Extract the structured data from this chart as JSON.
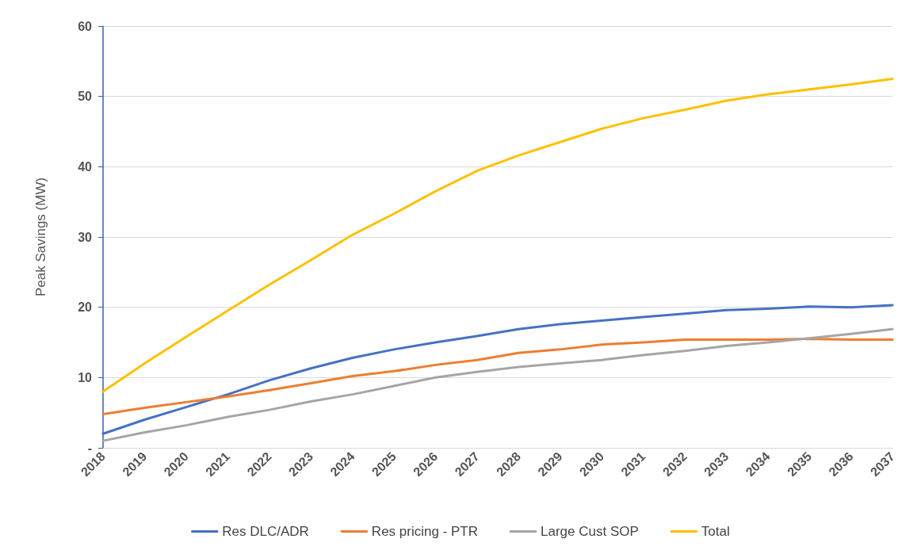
{
  "chart_data": {
    "type": "line",
    "ylabel": "Peak Savings (MW)",
    "categories": [
      "2018",
      "2019",
      "2020",
      "2021",
      "2022",
      "2023",
      "2024",
      "2025",
      "2026",
      "2027",
      "2028",
      "2029",
      "2030",
      "2031",
      "2032",
      "2033",
      "2034",
      "2035",
      "2036",
      "2037"
    ],
    "series": [
      {
        "name": "Res DLC/ADR",
        "color": "#4472c4",
        "values": [
          2,
          4,
          5.8,
          7.6,
          9.6,
          11.3,
          12.8,
          14,
          15,
          15.9,
          16.9,
          17.6,
          18.1,
          18.6,
          19.1,
          19.6,
          19.8,
          20.1,
          20,
          20.3
        ]
      },
      {
        "name": "Res pricing - PTR",
        "color": "#ed7d31",
        "values": [
          4.8,
          5.7,
          6.5,
          7.3,
          8.2,
          9.2,
          10.2,
          10.9,
          11.8,
          12.5,
          13.5,
          14,
          14.7,
          15,
          15.4,
          15.4,
          15.4,
          15.5,
          15.4,
          15.4
        ]
      },
      {
        "name": "Large Cust SOP",
        "color": "#a5a5a5",
        "values": [
          1,
          2.2,
          3.2,
          4.4,
          5.4,
          6.6,
          7.6,
          8.8,
          10,
          10.8,
          11.5,
          12,
          12.5,
          13.2,
          13.8,
          14.5,
          15,
          15.6,
          16.2,
          16.9
        ]
      },
      {
        "name": "Total",
        "color": "#ffc000",
        "values": [
          8,
          12,
          15.8,
          19.5,
          23.2,
          26.7,
          30.3,
          33.3,
          36.5,
          39.4,
          41.6,
          43.5,
          45.4,
          46.9,
          48.1,
          49.4,
          50.3,
          51,
          51.7,
          52.5
        ]
      }
    ],
    "ylim": [
      0,
      60
    ],
    "yticks": [
      {
        "value": 0,
        "label": "-"
      },
      10,
      20,
      30,
      40,
      50,
      60
    ],
    "grid": "y",
    "legend": "bottom",
    "marker": "none",
    "line_style": "solid"
  }
}
